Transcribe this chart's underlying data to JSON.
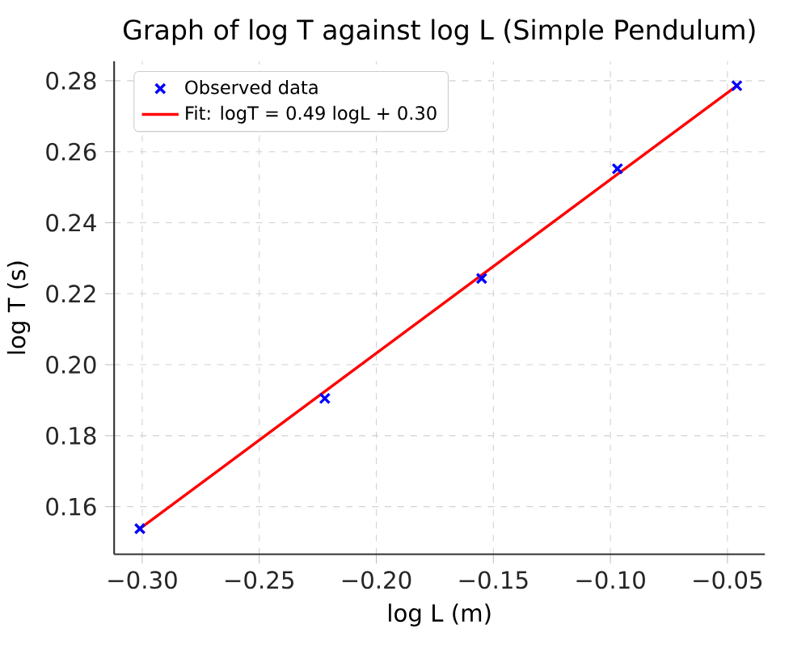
{
  "chart_data": {
    "type": "scatter",
    "title": "Graph of log T against log L (Simple Pendulum)",
    "xlabel": "log L (m)",
    "ylabel": "log T (s)",
    "series": [
      {
        "name": "Observed data",
        "color": "#0000ff",
        "marker": "cross",
        "x": [
          -0.301,
          -0.222,
          -0.155,
          -0.097,
          -0.046
        ],
        "values": [
          0.1538,
          0.1905,
          0.2243,
          0.2552,
          0.2786
        ]
      },
      {
        "name": "Fit: logT = 0.49 logL + 0.30",
        "type": "line",
        "color": "#ff0000",
        "line_style": "solid",
        "x": [
          -0.301,
          -0.046
        ],
        "values": [
          0.1538,
          0.2786
        ]
      }
    ],
    "xlim": [
      -0.312,
      -0.034
    ],
    "ylim": [
      0.1466,
      0.2855
    ],
    "xticks": [
      {
        "value": -0.3,
        "label": "−0.30"
      },
      {
        "value": -0.25,
        "label": "−0.25"
      },
      {
        "value": -0.2,
        "label": "−0.20"
      },
      {
        "value": -0.15,
        "label": "−0.15"
      },
      {
        "value": -0.1,
        "label": "−0.10"
      },
      {
        "value": -0.05,
        "label": "−0.05"
      }
    ],
    "yticks": [
      {
        "value": 0.16,
        "label": "0.16"
      },
      {
        "value": 0.18,
        "label": "0.18"
      },
      {
        "value": 0.2,
        "label": "0.20"
      },
      {
        "value": 0.22,
        "label": "0.22"
      },
      {
        "value": 0.24,
        "label": "0.24"
      },
      {
        "value": 0.26,
        "label": "0.26"
      },
      {
        "value": 0.28,
        "label": "0.28"
      }
    ],
    "grid": true,
    "legend": "top left"
  }
}
